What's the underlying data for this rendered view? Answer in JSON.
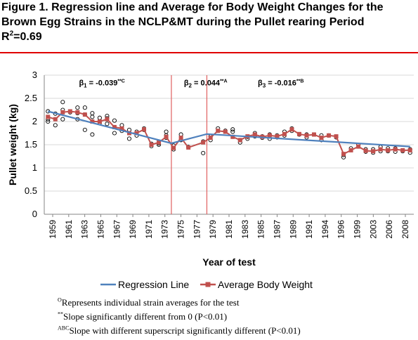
{
  "figure": {
    "title_line1": "Figure 1.  Regression line and Average for Body Weight Changes for the",
    "title_line2": "Brown Egg Strains in the NCLP&MT during the Pullet rearing Period",
    "r2_label": "R",
    "r2_sup": "2",
    "r2_value": "=0.69"
  },
  "colors": {
    "regression": "#4f81bd",
    "average": "#c0504d",
    "average_marker": "#c0504d",
    "divider": "#e06060",
    "title_rule": "#e00000",
    "grid": "#d9d9d9",
    "axis": "#868686"
  },
  "annotations": [
    {
      "prefix": "β",
      "sub": "1",
      "text": " = -0.039",
      "sup": "**C",
      "year": 1963.2,
      "y": 2.78
    },
    {
      "prefix": "β",
      "sub": "2",
      "text": " = 0.044",
      "sup": "**A",
      "year": 1977.4,
      "y": 2.78
    },
    {
      "prefix": "β",
      "sub": "3",
      "text": " = -0.016",
      "sup": "**B",
      "year": 1987.4,
      "y": 2.78
    }
  ],
  "notes": [
    {
      "sup": "O",
      "text": "Represents individual strain averages for the test"
    },
    {
      "sup": "**",
      "text": "Slope significantly different from 0 (P<0.01)"
    },
    {
      "sup": "ABC",
      "text": "Slope with different superscript significantly different (P<0.01)"
    }
  ],
  "chart_data": {
    "type": "line",
    "title": "",
    "xlabel": "Year of test",
    "ylabel": "Pullet weight (kg)",
    "ylim": [
      0,
      3
    ],
    "xlim": [
      1958.5,
      2008.5
    ],
    "grid": "horizontal",
    "legend_position": "bottom",
    "x_tick_labels": [
      "1959",
      "1961",
      "1963",
      "1965",
      "1967",
      "1969",
      "1971",
      "1973",
      "1975",
      "1977",
      "1979",
      "1981",
      "1983",
      "1985",
      "1987",
      "1989",
      "1991",
      "1994",
      "1996",
      "1999",
      "2003",
      "2006",
      "2008"
    ],
    "y_tick_labels": [
      "0",
      "0.5",
      "1",
      "1.5",
      "2",
      "2.5",
      "3"
    ],
    "dividers_years": [
      1975.7,
      1980.5
    ],
    "series": [
      {
        "name": "Regression Line",
        "style": "line",
        "x": [
          1959,
          1975.7,
          1980.5,
          2008
        ],
        "values": [
          2.22,
          1.53,
          1.73,
          1.46
        ]
      },
      {
        "name": "Average Body Weight",
        "style": "line-square",
        "x": [
          1959,
          1960,
          1961,
          1962,
          1963,
          1964,
          1965,
          1966,
          1967,
          1968,
          1969,
          1970,
          1971,
          1972,
          1973,
          1974,
          1975,
          1976,
          1977,
          1978,
          1980,
          1981,
          1982,
          1983,
          1984,
          1985,
          1986,
          1987,
          1988,
          1989,
          1990,
          1991,
          1992,
          1993,
          1994,
          1995,
          1996,
          1997,
          1998,
          1999,
          2000,
          2001,
          2002,
          2003,
          2004,
          2005,
          2006,
          2007,
          2008
        ],
        "values": [
          2.1,
          2.05,
          2.2,
          2.22,
          2.2,
          2.15,
          2.0,
          2.0,
          2.05,
          1.88,
          1.85,
          1.75,
          1.75,
          1.83,
          1.5,
          1.55,
          1.67,
          1.43,
          1.65,
          1.44,
          1.55,
          1.65,
          1.8,
          1.78,
          1.67,
          1.6,
          1.68,
          1.72,
          1.67,
          1.7,
          1.68,
          1.73,
          1.83,
          1.73,
          1.7,
          1.72,
          1.65,
          1.7,
          1.68,
          1.3,
          1.38,
          1.46,
          1.37,
          1.36,
          1.4,
          1.38,
          1.4,
          1.38,
          1.38
        ]
      },
      {
        "name": "",
        "style": "open-circle",
        "x": [
          1959,
          1959,
          1959,
          1960,
          1960,
          1961,
          1961,
          1961,
          1962,
          1963,
          1963,
          1963,
          1964,
          1964,
          1964,
          1965,
          1965,
          1965,
          1966,
          1966,
          1967,
          1967,
          1967,
          1968,
          1968,
          1969,
          1969,
          1969,
          1970,
          1970,
          1970,
          1971,
          1971,
          1972,
          1972,
          1973,
          1973,
          1974,
          1974,
          1975,
          1975,
          1975,
          1976,
          1976,
          1977,
          1977,
          1978,
          1980,
          1980,
          1981,
          1981,
          1982,
          1983,
          1984,
          1984,
          1985,
          1985,
          1986,
          1986,
          1987,
          1987,
          1988,
          1988,
          1989,
          1989,
          1990,
          1990,
          1991,
          1991,
          1992,
          1992,
          1993,
          1994,
          1994,
          1995,
          1996,
          1996,
          1997,
          1998,
          1999,
          1999,
          2000,
          2001,
          2002,
          2002,
          2003,
          2003,
          2004,
          2004,
          2005,
          2005,
          2006,
          2006,
          2007,
          2008,
          2008
        ],
        "values": [
          2.22,
          2.05,
          2.0,
          2.17,
          1.92,
          2.42,
          2.25,
          2.05,
          2.2,
          2.3,
          2.18,
          2.05,
          2.3,
          2.15,
          1.82,
          2.18,
          2.1,
          1.72,
          2.08,
          1.97,
          2.12,
          2.07,
          1.95,
          1.75,
          2.02,
          1.92,
          1.85,
          1.8,
          1.82,
          1.75,
          1.63,
          1.78,
          1.7,
          1.85,
          1.82,
          1.52,
          1.47,
          1.53,
          1.5,
          1.78,
          1.7,
          1.65,
          1.48,
          1.4,
          1.72,
          1.6,
          1.45,
          1.57,
          1.32,
          1.68,
          1.6,
          1.85,
          1.8,
          1.83,
          1.78,
          1.6,
          1.55,
          1.67,
          1.63,
          1.75,
          1.68,
          1.68,
          1.65,
          1.72,
          1.63,
          1.7,
          1.66,
          1.78,
          1.7,
          1.85,
          1.8,
          1.72,
          1.72,
          1.66,
          1.72,
          1.7,
          1.6,
          1.7,
          1.66,
          1.28,
          1.23,
          1.42,
          1.5,
          1.4,
          1.35,
          1.4,
          1.33,
          1.45,
          1.36,
          1.42,
          1.36,
          1.42,
          1.35,
          1.36,
          1.4,
          1.33
        ]
      }
    ]
  }
}
